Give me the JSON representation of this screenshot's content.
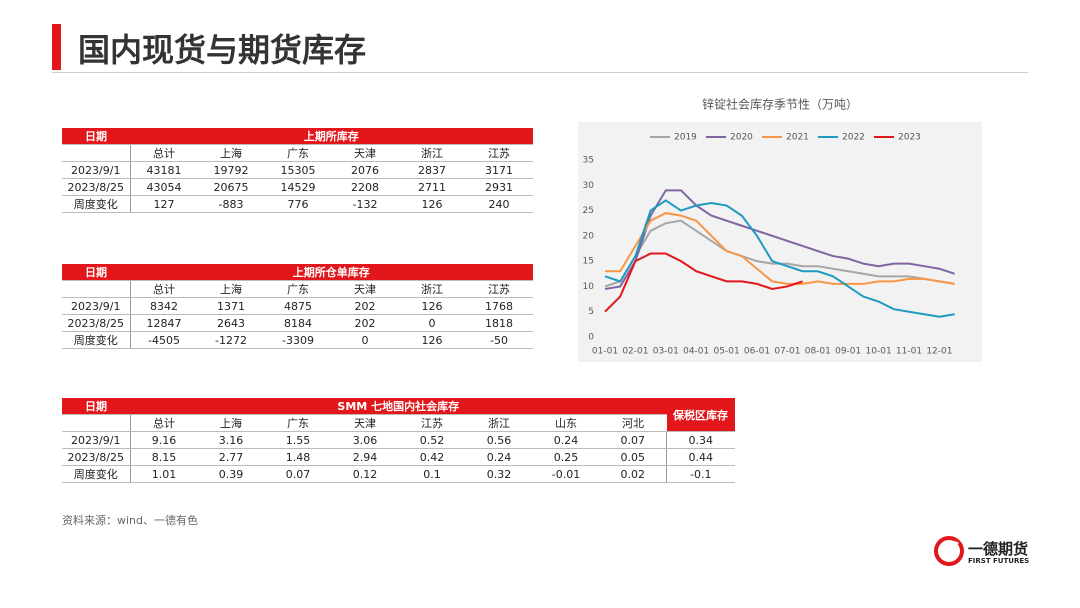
{
  "header": {
    "title": "国内现货与期货库存"
  },
  "tables": [
    {
      "title": "上期所库存",
      "date_header": "日期",
      "columns": [
        "总计",
        "上海",
        "广东",
        "天津",
        "浙江",
        "江苏"
      ],
      "rows": [
        [
          "2023/9/1",
          43181,
          19792,
          15305,
          2076,
          2837,
          3171
        ],
        [
          "2023/8/25",
          43054,
          20675,
          14529,
          2208,
          2711,
          2931
        ],
        [
          "周度变化",
          127,
          -883,
          776,
          -132,
          126,
          240
        ]
      ]
    },
    {
      "title": "上期所仓单库存",
      "date_header": "日期",
      "columns": [
        "总计",
        "上海",
        "广东",
        "天津",
        "浙江",
        "江苏"
      ],
      "rows": [
        [
          "2023/9/1",
          8342,
          1371,
          4875,
          202,
          126,
          1768
        ],
        [
          "2023/8/25",
          12847,
          2643,
          8184,
          202,
          0,
          1818
        ],
        [
          "周度变化",
          -4505,
          -1272,
          -3309,
          0,
          126,
          -50
        ]
      ]
    },
    {
      "title": "SMM 七地国内社会库存",
      "date_header": "日期",
      "extra_header": "保税区库存",
      "columns": [
        "总计",
        "上海",
        "广东",
        "天津",
        "江苏",
        "浙江",
        "山东",
        "河北"
      ],
      "rows": [
        [
          "2023/9/1",
          9.16,
          3.16,
          1.55,
          3.06,
          0.52,
          0.56,
          0.24,
          0.07,
          0.34
        ],
        [
          "2023/8/25",
          8.15,
          2.77,
          1.48,
          2.94,
          0.42,
          0.24,
          0.25,
          0.05,
          0.44
        ],
        [
          "周度变化",
          1.01,
          0.39,
          0.07,
          0.12,
          0.1,
          0.32,
          -0.01,
          0.02,
          -0.1
        ]
      ]
    }
  ],
  "chart_data": {
    "type": "line",
    "title": "锌锭社会库存季节性（万吨）",
    "categories": [
      "01-01",
      null,
      "02-01",
      null,
      "03-01",
      null,
      "04-01",
      null,
      "05-01",
      null,
      "06-01",
      null,
      "07-01",
      null,
      "08-01",
      null,
      "09-01",
      null,
      "10-01",
      null,
      "11-01",
      null,
      "12-01",
      null
    ],
    "series": [
      {
        "name": "2019",
        "color": "#a6a6a6",
        "values": [
          10,
          11,
          16,
          21,
          22.5,
          23,
          21,
          19,
          17,
          16,
          15,
          14.5,
          14.5,
          14,
          14,
          13.5,
          13,
          12.5,
          12,
          12,
          12,
          11.5,
          11,
          10.5
        ]
      },
      {
        "name": "2020",
        "color": "#8064a2",
        "values": [
          9.5,
          10,
          15,
          24,
          29,
          29,
          26,
          24,
          23,
          22,
          21,
          20,
          19,
          18,
          17,
          16,
          15.5,
          14.5,
          14,
          14.5,
          14.5,
          14,
          13.5,
          12.5
        ]
      },
      {
        "name": "2021",
        "color": "#f79646",
        "values": [
          13,
          13,
          18,
          23,
          24.5,
          24,
          23,
          20,
          17,
          16,
          13.5,
          11,
          10.5,
          10.5,
          11,
          10.5,
          10.5,
          10.5,
          11,
          11,
          11.5,
          11.5,
          11,
          10.5
        ]
      },
      {
        "name": "2022",
        "color": "#1f9bc0",
        "values": [
          12,
          11,
          16,
          25,
          27,
          25,
          26,
          26.5,
          26,
          24,
          20,
          15,
          14,
          13,
          13,
          12,
          10,
          8,
          7,
          5.5,
          5,
          4.5,
          4,
          4.5
        ]
      },
      {
        "name": "2023",
        "color": "#e3161b",
        "values": [
          5,
          8,
          15,
          16.5,
          16.5,
          15,
          13,
          12,
          11,
          11,
          10.5,
          9.5,
          10,
          11,
          null,
          null,
          null,
          null,
          null,
          null,
          null,
          null,
          null,
          null
        ]
      }
    ],
    "ylim": [
      0,
      35
    ],
    "yticks": [
      0,
      5,
      10,
      15,
      20,
      25,
      30,
      35
    ],
    "legend": "top"
  },
  "source": "资料来源：wind、一德有色",
  "logo": {
    "name": "一德期货",
    "subtitle": "FIRST FUTURES"
  }
}
